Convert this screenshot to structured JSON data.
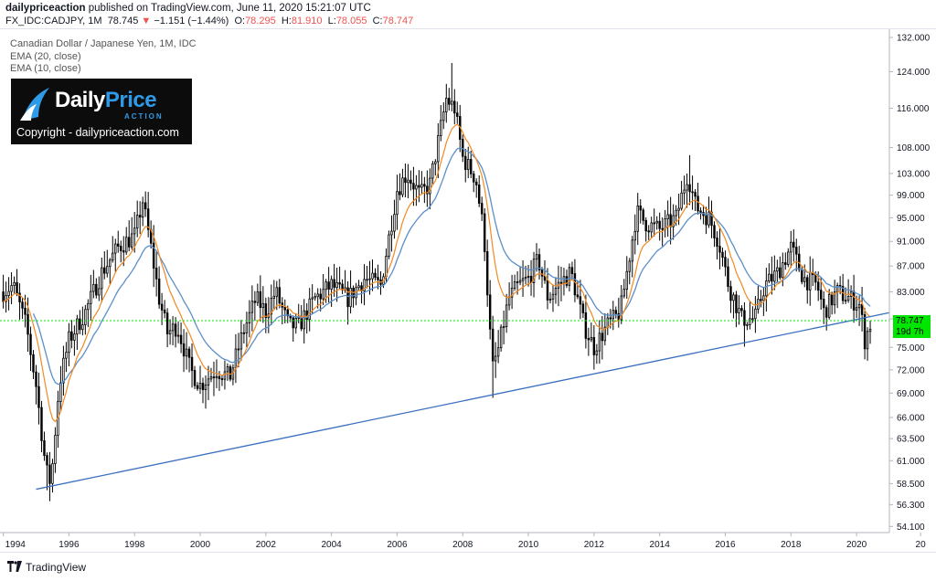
{
  "header": {
    "publisher": "dailypriceaction",
    "published_text": " published on TradingView.com, June 11, 2020 15:21:07 UTC",
    "symbol": "FX_IDC:CADJPY, 1M",
    "last": "78.745",
    "change_arrow": "▼",
    "change": "−1.151 (−1.44%)",
    "o_label": "O:",
    "o_val": "78.295",
    "h_label": "H:",
    "h_val": "81.910",
    "l_label": "L:",
    "l_val": "78.055",
    "c_label": "C:",
    "c_val": "78.747"
  },
  "legend": {
    "title": "Canadian Dollar / Japanese Yen, 1M, IDC",
    "ema20": "EMA (20, close)",
    "ema10": "EMA (10, close)"
  },
  "logo": {
    "brand_a": "Daily",
    "brand_b": "Price",
    "sub": "ACTION",
    "copyright": "Copyright - dailypriceaction.com"
  },
  "price_tag": "78.747",
  "time_tag": "19d 7h",
  "footer": {
    "brand": "TradingView"
  },
  "colors": {
    "candle": "#000000",
    "ema20": "#5b8fc9",
    "ema10": "#f08a24",
    "trendline": "#3a6fbf",
    "price_line": "#00e600",
    "axis": "#131722"
  },
  "chart_data": {
    "type": "candlestick",
    "y_scale": "log",
    "ylim": [
      53.5,
      134
    ],
    "xlim": [
      1993.9,
      2021.0
    ],
    "y_ticks": [
      "132.000",
      "124.000",
      "116.000",
      "108.000",
      "103.000",
      "99.000",
      "95.000",
      "91.000",
      "87.000",
      "83.000",
      "79.000",
      "75.000",
      "72.000",
      "69.000",
      "66.000",
      "63.500",
      "61.000",
      "58.500",
      "56.300",
      "54.100"
    ],
    "x_ticks": [
      {
        "year": 1994,
        "label": "1994"
      },
      {
        "year": 1996,
        "label": "1996"
      },
      {
        "year": 1998,
        "label": "1998"
      },
      {
        "year": 2000,
        "label": "2000"
      },
      {
        "year": 2002,
        "label": "2002"
      },
      {
        "year": 2004,
        "label": "2004"
      },
      {
        "year": 2006,
        "label": "2006"
      },
      {
        "year": 2008,
        "label": "2008"
      },
      {
        "year": 2010,
        "label": "2010"
      },
      {
        "year": 2012,
        "label": "2012"
      },
      {
        "year": 2014,
        "label": "2014"
      },
      {
        "year": 2016,
        "label": "2016"
      },
      {
        "year": 2018,
        "label": "2018"
      },
      {
        "year": 2020,
        "label": "2020"
      },
      {
        "year": 2021.95,
        "label": "20"
      }
    ],
    "price_keypoints": [
      [
        1994.0,
        83
      ],
      [
        1994.3,
        84
      ],
      [
        1994.7,
        78
      ],
      [
        1995.0,
        70
      ],
      [
        1995.3,
        60
      ],
      [
        1995.45,
        58.5
      ],
      [
        1995.7,
        70
      ],
      [
        1996.0,
        76
      ],
      [
        1996.5,
        80
      ],
      [
        1997.0,
        86
      ],
      [
        1997.5,
        90
      ],
      [
        1998.0,
        92
      ],
      [
        1998.25,
        98
      ],
      [
        1998.5,
        90
      ],
      [
        1998.75,
        82
      ],
      [
        1999.0,
        77
      ],
      [
        1999.3,
        78
      ],
      [
        1999.7,
        72
      ],
      [
        2000.0,
        70
      ],
      [
        2000.5,
        72
      ],
      [
        2000.9,
        71
      ],
      [
        2001.3,
        77
      ],
      [
        2001.7,
        82
      ],
      [
        2002.0,
        80
      ],
      [
        2002.3,
        83
      ],
      [
        2002.7,
        78
      ],
      [
        2003.0,
        78
      ],
      [
        2003.5,
        82
      ],
      [
        2004.0,
        84
      ],
      [
        2004.5,
        82
      ],
      [
        2005.0,
        85
      ],
      [
        2005.5,
        84
      ],
      [
        2006.0,
        100
      ],
      [
        2006.3,
        103
      ],
      [
        2006.7,
        99
      ],
      [
        2007.0,
        101
      ],
      [
        2007.5,
        118
      ],
      [
        2007.75,
        116
      ],
      [
        2008.0,
        106
      ],
      [
        2008.4,
        102
      ],
      [
        2008.65,
        92
      ],
      [
        2008.9,
        72
      ],
      [
        2009.1,
        75
      ],
      [
        2009.4,
        82
      ],
      [
        2009.7,
        84
      ],
      [
        2010.0,
        85
      ],
      [
        2010.3,
        88
      ],
      [
        2010.6,
        82
      ],
      [
        2010.9,
        84
      ],
      [
        2011.3,
        86
      ],
      [
        2011.7,
        78
      ],
      [
        2012.0,
        75
      ],
      [
        2012.4,
        78
      ],
      [
        2012.8,
        80
      ],
      [
        2013.0,
        86
      ],
      [
        2013.3,
        96
      ],
      [
        2013.6,
        94
      ],
      [
        2014.0,
        93
      ],
      [
        2014.5,
        95
      ],
      [
        2014.85,
        103
      ],
      [
        2015.1,
        97
      ],
      [
        2015.5,
        95
      ],
      [
        2015.8,
        91
      ],
      [
        2016.1,
        84
      ],
      [
        2016.5,
        79
      ],
      [
        2016.9,
        79
      ],
      [
        2017.2,
        84
      ],
      [
        2017.6,
        86
      ],
      [
        2018.0,
        90
      ],
      [
        2018.4,
        85
      ],
      [
        2018.8,
        84
      ],
      [
        2019.0,
        80
      ],
      [
        2019.4,
        83
      ],
      [
        2019.8,
        82
      ],
      [
        2020.1,
        81
      ],
      [
        2020.25,
        76
      ],
      [
        2020.45,
        78.7
      ]
    ],
    "notable_extremes": [
      {
        "x": 1995.3,
        "low": 57.8
      },
      {
        "x": 1998.4,
        "high": 99.6
      },
      {
        "x": 2007.65,
        "high": 126.0
      },
      {
        "x": 2008.9,
        "low": 68.4
      },
      {
        "x": 2014.9,
        "high": 106.5
      },
      {
        "x": 2016.6,
        "low": 75.1
      },
      {
        "x": 2020.25,
        "low": 74.1
      }
    ],
    "trendline": {
      "start": [
        1995.0,
        57.9
      ],
      "end": [
        2021.0,
        79.9
      ]
    },
    "horizontal_line": 78.747,
    "series": [
      {
        "name": "EMA (20, close)"
      },
      {
        "name": "EMA (10, close)"
      }
    ]
  }
}
